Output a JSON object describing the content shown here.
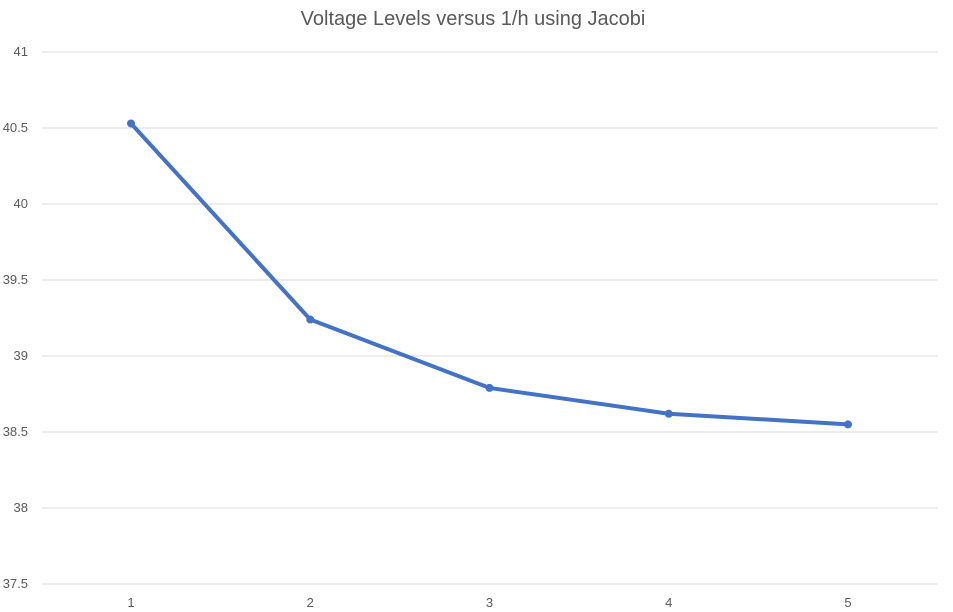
{
  "chart_data": {
    "type": "line",
    "title": "Voltage Levels versus 1/h using Jacobi",
    "xlabel": "",
    "ylabel": "",
    "x": [
      1,
      2,
      3,
      4,
      5
    ],
    "x_tick_labels": [
      "1",
      "2",
      "3",
      "4",
      "5"
    ],
    "y_tick_labels": [
      "37.5",
      "38",
      "38.5",
      "39",
      "39.5",
      "40",
      "40.5",
      "41"
    ],
    "ylim": [
      37.5,
      41
    ],
    "grid": true,
    "legend": "none",
    "series": [
      {
        "values": [
          40.53,
          39.24,
          38.79,
          38.62,
          38.55
        ],
        "color": "#4472c4"
      }
    ]
  }
}
